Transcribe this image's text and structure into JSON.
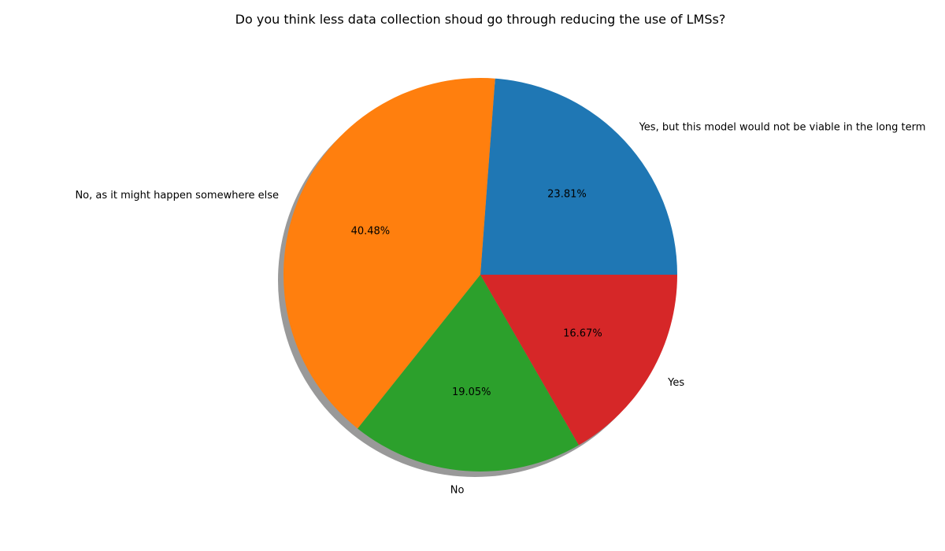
{
  "chart_data": {
    "type": "pie",
    "title": "Do you think less data collection shoud go through reducing the use of LMSs?",
    "categories": [
      "Yes, but this model would not be viable in the long term",
      "No, as it might happen somewhere else",
      "No",
      "Yes"
    ],
    "values": [
      23.81,
      40.48,
      19.05,
      16.67
    ],
    "percent_labels": [
      "23.81%",
      "40.48%",
      "19.05%",
      "16.67%"
    ],
    "colors": [
      "#1f77b4",
      "#ff7f0e",
      "#2ca02c",
      "#d62728"
    ],
    "start_angle_deg": 0,
    "direction": "counterclockwise",
    "shadow": true,
    "legend": "none"
  }
}
